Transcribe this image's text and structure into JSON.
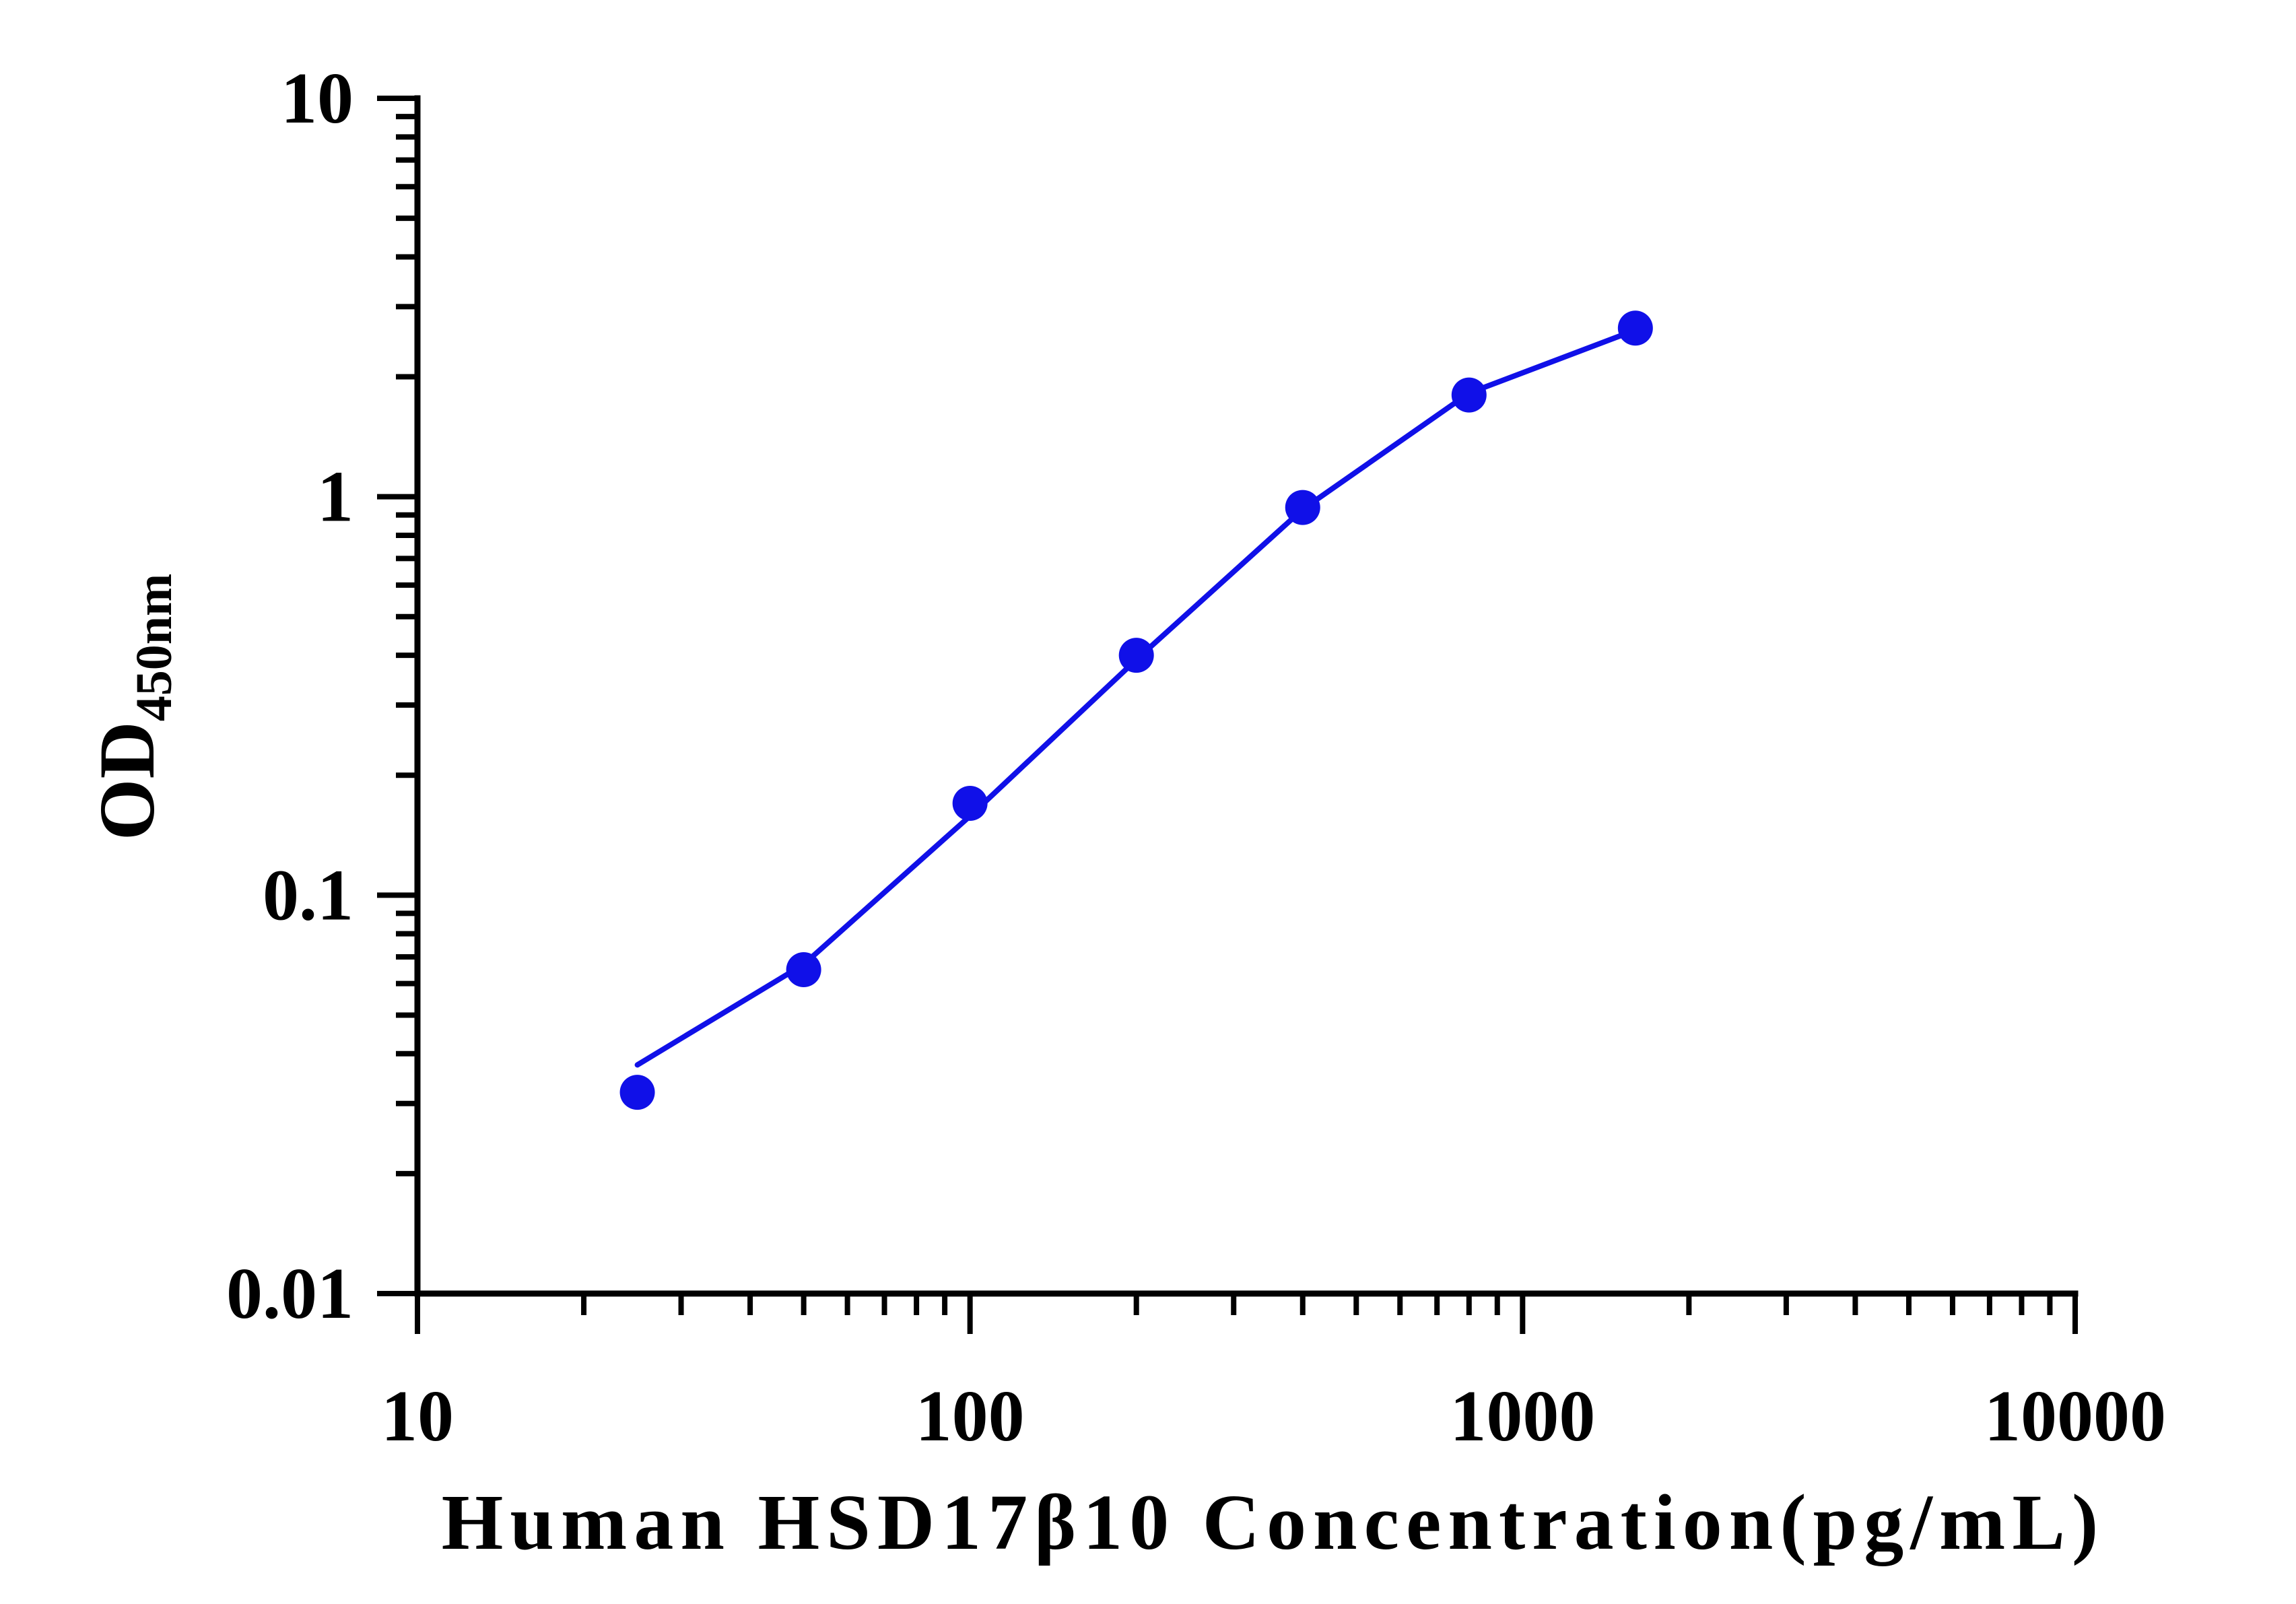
{
  "chart_data": {
    "type": "line",
    "xlabel": "Human HSD17β10 Concentration(pg/mL)",
    "ylabel": "OD",
    "ylabel_subscript": "450nm",
    "xscale": "log",
    "yscale": "log",
    "xlim": [
      10,
      10000
    ],
    "ylim": [
      0.01,
      10
    ],
    "x_ticks": [
      "10",
      "100",
      "1000",
      "10000"
    ],
    "y_ticks": [
      "0.01",
      "0.1",
      "1",
      "10"
    ],
    "grid": false,
    "legend": "none",
    "series": [
      {
        "color": "#1010e8",
        "points": [
          {
            "x": 25,
            "y": 0.032
          },
          {
            "x": 50,
            "y": 0.065
          },
          {
            "x": 100,
            "y": 0.17
          },
          {
            "x": 200,
            "y": 0.4
          },
          {
            "x": 400,
            "y": 0.94
          },
          {
            "x": 800,
            "y": 1.8
          },
          {
            "x": 1600,
            "y": 2.65
          }
        ],
        "fit_curve": [
          {
            "x": 25,
            "y": 0.0375
          },
          {
            "x": 50,
            "y": 0.067
          },
          {
            "x": 100,
            "y": 0.158
          },
          {
            "x": 200,
            "y": 0.39
          },
          {
            "x": 400,
            "y": 0.93
          },
          {
            "x": 800,
            "y": 1.82
          },
          {
            "x": 1600,
            "y": 2.62
          }
        ]
      }
    ]
  }
}
